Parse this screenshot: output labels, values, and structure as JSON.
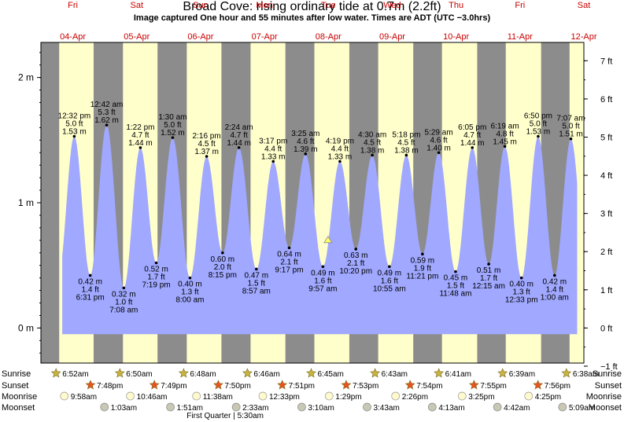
{
  "title": "Broad Cove: rising  ordinary tide at 0.7m (2.2ft)",
  "subtitle": "Image captured One hour and 55 minutes after low water. Times are ADT (UTC −3.0hrs)",
  "chart_data": {
    "type": "area",
    "x_unit": "hours since Fri 04-Apr 00:00 (axis shows days)",
    "days": [
      {
        "day": "Fri",
        "date": "04-Apr"
      },
      {
        "day": "Sat",
        "date": "05-Apr"
      },
      {
        "day": "Sun",
        "date": "06-Apr"
      },
      {
        "day": "Mon",
        "date": "07-Apr"
      },
      {
        "day": "Tue",
        "date": "08-Apr"
      },
      {
        "day": "Wed",
        "date": "09-Apr"
      },
      {
        "day": "Thu",
        "date": "10-Apr"
      },
      {
        "day": "Fri",
        "date": "11-Apr"
      },
      {
        "day": "Sat",
        "date": "12-Apr"
      }
    ],
    "y_left": {
      "unit": "m",
      "ylim": [
        -0.28,
        2.28
      ],
      "ticks": [
        {
          "v": 0,
          "label": "0 m"
        },
        {
          "v": 1,
          "label": "1 m"
        },
        {
          "v": 2,
          "label": "2 m"
        }
      ]
    },
    "y_right": {
      "unit": "ft",
      "ticks": [
        "−1 ft",
        "0 ft",
        "1 ft",
        "2 ft",
        "3 ft",
        "4 ft",
        "5 ft",
        "6 ft",
        "7 ft"
      ]
    },
    "tides": [
      {
        "type": "high",
        "time": "12:32 pm",
        "ft": "5.0 ft",
        "m": "1.53 m",
        "h": 12.53,
        "v": 1.53
      },
      {
        "type": "low",
        "time": "6:31 pm",
        "ft": "1.4 ft",
        "m": "0.42 m",
        "h": 18.52,
        "v": 0.42
      },
      {
        "type": "high",
        "time": "12:42 am",
        "ft": "5.3 ft",
        "m": "1.62 m",
        "h": 24.7,
        "v": 1.62
      },
      {
        "type": "low",
        "time": "7:08 am",
        "ft": "1.0 ft",
        "m": "0.32 m",
        "h": 31.13,
        "v": 0.32
      },
      {
        "type": "high",
        "time": "1:22 pm",
        "ft": "4.7 ft",
        "m": "1.44 m",
        "h": 37.37,
        "v": 1.44
      },
      {
        "type": "low",
        "time": "7:19 pm",
        "ft": "1.7 ft",
        "m": "0.52 m",
        "h": 43.32,
        "v": 0.52
      },
      {
        "type": "high",
        "time": "1:30 am",
        "ft": "5.0 ft",
        "m": "1.52 m",
        "h": 49.5,
        "v": 1.52
      },
      {
        "type": "low",
        "time": "8:00 am",
        "ft": "1.3 ft",
        "m": "0.40 m",
        "h": 56.0,
        "v": 0.4
      },
      {
        "type": "high",
        "time": "2:16 pm",
        "ft": "4.5 ft",
        "m": "1.37 m",
        "h": 62.27,
        "v": 1.37
      },
      {
        "type": "low",
        "time": "8:15 pm",
        "ft": "2.0 ft",
        "m": "0.60 m",
        "h": 68.25,
        "v": 0.6
      },
      {
        "type": "high",
        "time": "2:24 am",
        "ft": "4.7 ft",
        "m": "1.44 m",
        "h": 74.4,
        "v": 1.44
      },
      {
        "type": "low",
        "time": "8:57 am",
        "ft": "1.5 ft",
        "m": "0.47 m",
        "h": 80.95,
        "v": 0.47
      },
      {
        "type": "high",
        "time": "3:17 pm",
        "ft": "4.4 ft",
        "m": "1.33 m",
        "h": 87.28,
        "v": 1.33
      },
      {
        "type": "low",
        "time": "9:17 pm",
        "ft": "2.1 ft",
        "m": "0.64 m",
        "h": 93.28,
        "v": 0.64
      },
      {
        "type": "high",
        "time": "3:25 am",
        "ft": "4.6 ft",
        "m": "1.39 m",
        "h": 99.42,
        "v": 1.39
      },
      {
        "type": "low",
        "time": "9:57 am",
        "ft": "1.6 ft",
        "m": "0.49 m",
        "h": 105.95,
        "v": 0.49
      },
      {
        "type": "high",
        "time": "4:19 pm",
        "ft": "4.4 ft",
        "m": "1.33 m",
        "h": 112.32,
        "v": 1.33
      },
      {
        "type": "low",
        "time": "10:20 pm",
        "ft": "2.1 ft",
        "m": "0.63 m",
        "h": 118.33,
        "v": 0.63
      },
      {
        "type": "high",
        "time": "4:30 am",
        "ft": "4.5 ft",
        "m": "1.38 m",
        "h": 124.5,
        "v": 1.38
      },
      {
        "type": "low",
        "time": "10:55 am",
        "ft": "1.6 ft",
        "m": "0.49 m",
        "h": 130.92,
        "v": 0.49
      },
      {
        "type": "high",
        "time": "5:18 pm",
        "ft": "4.5 ft",
        "m": "1.38 m",
        "h": 137.3,
        "v": 1.38
      },
      {
        "type": "low",
        "time": "11:21 pm",
        "ft": "1.9 ft",
        "m": "0.59 m",
        "h": 143.35,
        "v": 0.59
      },
      {
        "type": "high",
        "time": "5:29 am",
        "ft": "4.6 ft",
        "m": "1.40 m",
        "h": 149.48,
        "v": 1.4
      },
      {
        "type": "low",
        "time": "11:48 am",
        "ft": "1.5 ft",
        "m": "0.45 m",
        "h": 155.8,
        "v": 0.45
      },
      {
        "type": "high",
        "time": "6:05 pm",
        "ft": "4.7 ft",
        "m": "1.44 m",
        "h": 162.08,
        "v": 1.44
      },
      {
        "type": "low",
        "time": "12:15 am",
        "ft": "1.7 ft",
        "m": "0.51 m",
        "h": 168.25,
        "v": 0.51
      },
      {
        "type": "high",
        "time": "6:19 am",
        "ft": "4.8 ft",
        "m": "1.45 m",
        "h": 174.32,
        "v": 1.45
      },
      {
        "type": "low",
        "time": "12:33 pm",
        "ft": "1.3 ft",
        "m": "0.40 m",
        "h": 180.55,
        "v": 0.4
      },
      {
        "type": "high",
        "time": "6:50 pm",
        "ft": "5.0 ft",
        "m": "1.53 m",
        "h": 186.83,
        "v": 1.53
      },
      {
        "type": "low",
        "time": "1:00 am",
        "ft": "1.4 ft",
        "m": "0.42 m",
        "h": 193.0,
        "v": 0.42
      },
      {
        "type": "high",
        "time": "7:07 am",
        "ft": "5.0 ft",
        "m": "1.51 m",
        "h": 199.12,
        "v": 1.51
      }
    ],
    "current": {
      "h": 107.87,
      "v": 0.7
    },
    "sunrise": [
      {
        "h": 6.87,
        "label": "6:52am"
      },
      {
        "h": 30.83,
        "label": "6:50am"
      },
      {
        "h": 54.8,
        "label": "6:48am"
      },
      {
        "h": 78.77,
        "label": "6:46am"
      },
      {
        "h": 102.75,
        "label": "6:45am"
      },
      {
        "h": 126.72,
        "label": "6:43am"
      },
      {
        "h": 150.68,
        "label": "6:41am"
      },
      {
        "h": 174.65,
        "label": "6:39am"
      },
      {
        "h": 198.63,
        "label": "6:38am"
      }
    ],
    "sunset": [
      {
        "h": 19.8,
        "label": "7:48pm"
      },
      {
        "h": 43.82,
        "label": "7:49pm"
      },
      {
        "h": 67.83,
        "label": "7:50pm"
      },
      {
        "h": 91.85,
        "label": "7:51pm"
      },
      {
        "h": 115.88,
        "label": "7:53pm"
      },
      {
        "h": 139.9,
        "label": "7:54pm"
      },
      {
        "h": 163.92,
        "label": "7:55pm"
      },
      {
        "h": 187.93,
        "label": "7:56pm"
      }
    ],
    "moonrise": [
      {
        "h": 9.97,
        "label": "9:58am"
      },
      {
        "h": 34.77,
        "label": "10:46am"
      },
      {
        "h": 59.63,
        "label": "11:38am"
      },
      {
        "h": 84.55,
        "label": "12:33pm"
      },
      {
        "h": 109.48,
        "label": "1:29pm"
      },
      {
        "h": 134.43,
        "label": "2:26pm"
      },
      {
        "h": 159.42,
        "label": "3:25pm"
      },
      {
        "h": 184.42,
        "label": "4:25pm"
      }
    ],
    "moonset": [
      {
        "h": 25.05,
        "label": "1:03am"
      },
      {
        "h": 49.85,
        "label": "1:51am"
      },
      {
        "h": 74.55,
        "label": "2:33am"
      },
      {
        "h": 99.17,
        "label": "3:10am"
      },
      {
        "h": 123.72,
        "label": "3:43am"
      },
      {
        "h": 148.22,
        "label": "4:13am"
      },
      {
        "h": 172.7,
        "label": "4:42am"
      },
      {
        "h": 197.15,
        "label": "5:09am"
      }
    ],
    "row_labels": [
      "Sunrise",
      "Sunset",
      "Moonrise",
      "Moonset"
    ],
    "moon_phase": {
      "h": 77.5,
      "label": "First Quarter | 5:30am"
    },
    "colors": {
      "night": "#8c8c8c",
      "day": "#ffffcc",
      "water": "#a0a8ff",
      "text": "#000000",
      "marker": "#ffff66",
      "sunrise_star": "#c8b440",
      "sunset_star": "#e8541c",
      "moonrise": "#fffacd",
      "moonset": "#c8c8b4"
    }
  }
}
